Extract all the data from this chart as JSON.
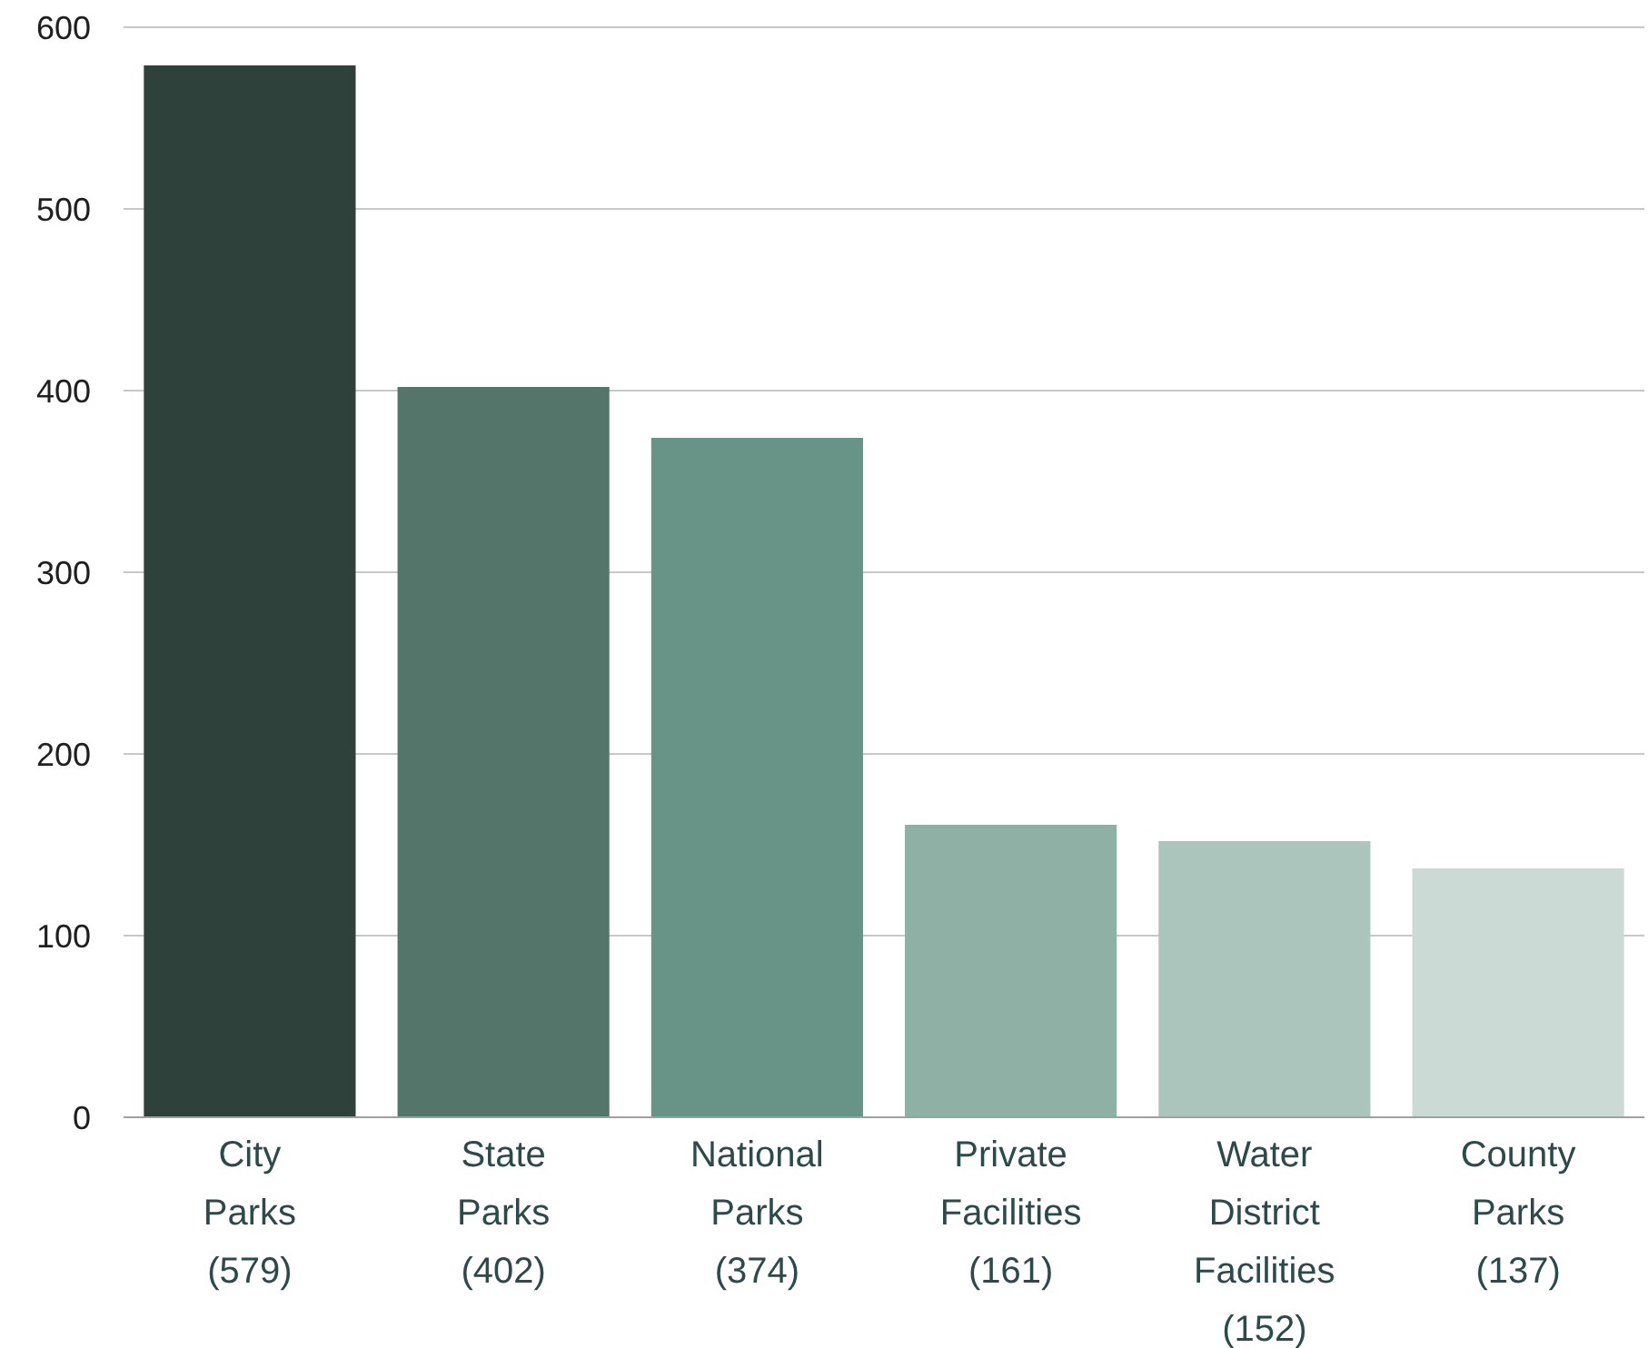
{
  "chart_data": {
    "type": "bar",
    "categories": [
      "City Parks (579)",
      "State Parks (402)",
      "National Parks (374)",
      "Private Facilities (161)",
      "Water District Facilities (152)",
      "County Parks (137)"
    ],
    "values": [
      579,
      402,
      374,
      161,
      152,
      137
    ],
    "colors": [
      "#2e413b",
      "#53756a",
      "#679486",
      "#8fb0a5",
      "#abc4bc",
      "#cbdad5"
    ],
    "ylim": [
      0,
      600
    ],
    "yticks": [
      0,
      100,
      200,
      300,
      400,
      500,
      600
    ],
    "grid": "y"
  }
}
